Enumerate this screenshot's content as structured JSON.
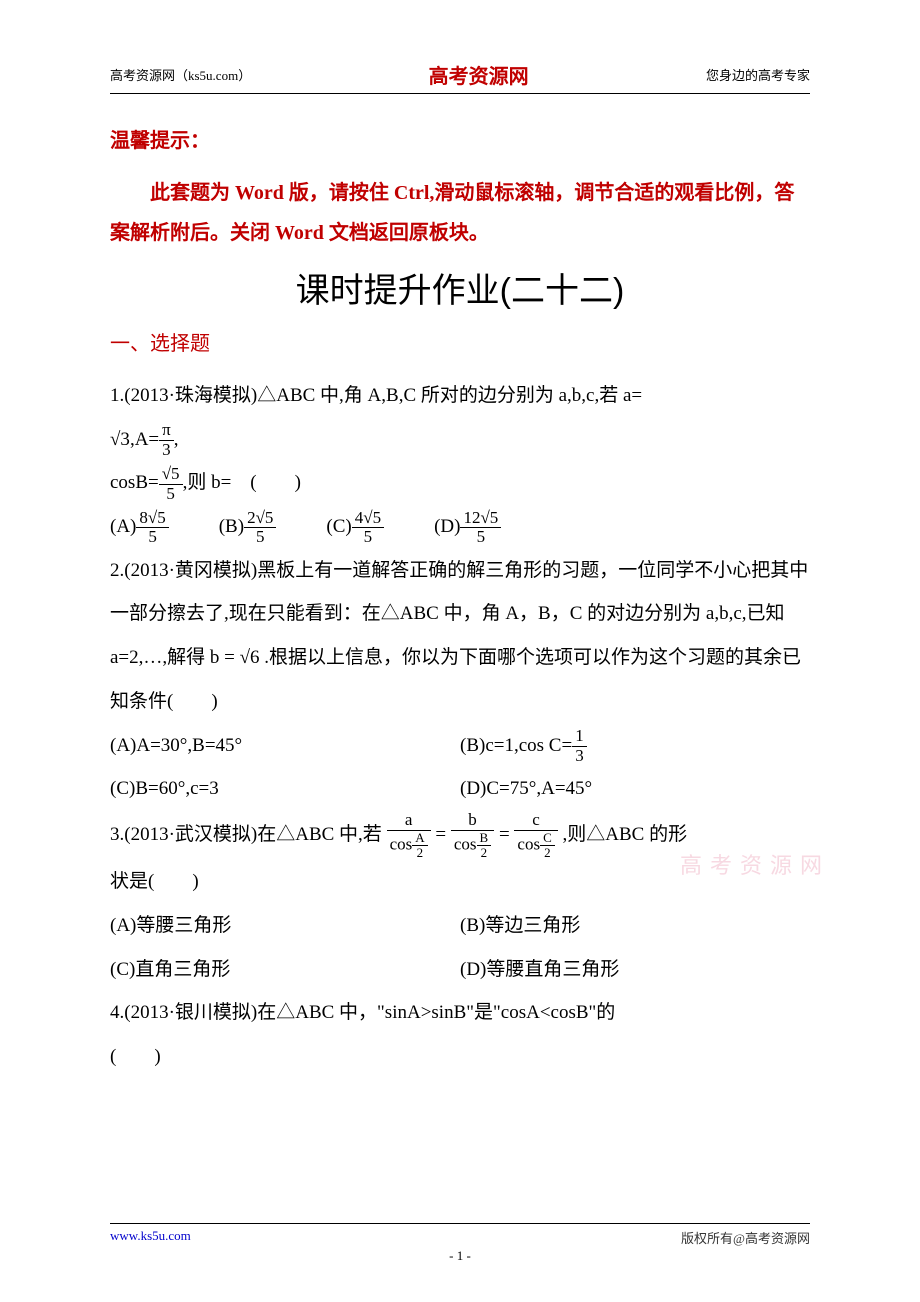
{
  "header": {
    "left": "高考资源网（ks5u.com）",
    "center": "高考资源网",
    "right": "您身边的高考专家"
  },
  "tip": {
    "title": "温馨提示：",
    "body": "此套题为 Word 版，请按住 Ctrl,滑动鼠标滚轴，调节合适的观看比例，答案解析附后。关闭 Word 文档返回原板块。"
  },
  "mainTitle": "课时提升作业(二十二)",
  "sectionTitle": "一、选择题",
  "q1": {
    "line1": "1.(2013·珠海模拟)△ABC 中,角 A,B,C 所对的边分别为 a,b,c,若 a=",
    "line2a": "√3",
    "line2b": ",A=",
    "line2c_num": "π",
    "line2c_den": "3",
    "line2d": ",",
    "line3a": "cosB=",
    "line3b_num": "√5",
    "line3b_den": "5",
    "line3c": ",则 b=　(　　)",
    "optA_prefix": "(A)",
    "optA_num": "8√5",
    "optA_den": "5",
    "optB_prefix": "(B)",
    "optB_num": "2√5",
    "optB_den": "5",
    "optC_prefix": "(C)",
    "optC_num": "4√5",
    "optC_den": "5",
    "optD_prefix": "(D)",
    "optD_num": "12√5",
    "optD_den": "5"
  },
  "q2": {
    "line1": "2.(2013·黄冈模拟)黑板上有一道解答正确的解三角形的习题，一位同学不小心把其中一部分擦去了,现在只能看到：在△ABC 中，角 A，B，C 的对边分别为 a,b,c,已知 a=2,…,解得 b = √6 .根据以上信息，你以为下面哪个选项可以作为这个习题的其余已知条件(　　)",
    "optA": "(A)A=30°,B=45°",
    "optB_prefix": "(B)c=1,cos C=",
    "optB_num": "1",
    "optB_den": "3",
    "optC": "(C)B=60°,c=3",
    "optD": "(D)C=75°,A=45°"
  },
  "q3": {
    "line1_prefix": "3.(2013·武汉模拟)在△ABC 中,若",
    "eq_a_num": "a",
    "eq_a_den_top": "A",
    "eq_b_num": "b",
    "eq_b_den_top": "B",
    "eq_c_num": "c",
    "eq_c_den_top": "C",
    "cos_prefix": "cos",
    "den_bottom": "2",
    "line1_suffix": ",则△ABC 的形",
    "line2": "状是(　　)",
    "optA": "(A)等腰三角形",
    "optB": "(B)等边三角形",
    "optC": "(C)直角三角形",
    "optD": "(D)等腰直角三角形"
  },
  "q4": {
    "line1": "4.(2013·银川模拟)在△ABC 中，\"sinA>sinB\"是\"cosA<cosB\"的",
    "line2": "(　　)"
  },
  "watermark": "高考资源网",
  "footer": {
    "left": "www.ks5u.com",
    "right": "版权所有@高考资源网",
    "pageNum": "- 1 -"
  }
}
